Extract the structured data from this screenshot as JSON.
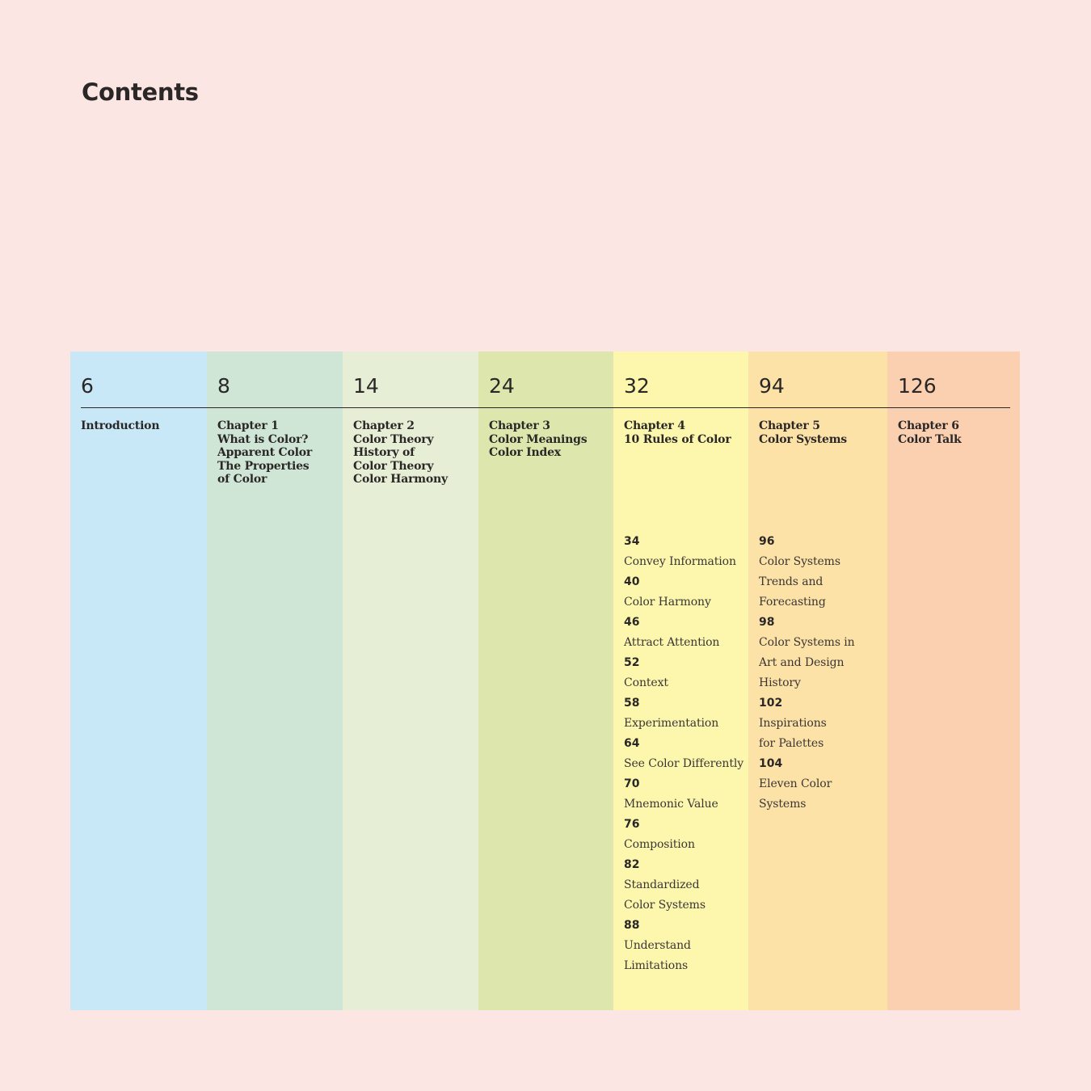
{
  "page_title": "Contents",
  "columns": [
    {
      "page": "6",
      "title": "Introduction",
      "color": "#c9e8f7",
      "subsections": []
    },
    {
      "page": "8",
      "title": "Chapter 1\nWhat is Color?\nApparent Color\nThe Properties\nof Color",
      "color": "#cfe6d6",
      "subsections": []
    },
    {
      "page": "14",
      "title": "Chapter 2\nColor Theory\nHistory of\nColor Theory\nColor Harmony",
      "color": "#e6efd5",
      "subsections": []
    },
    {
      "page": "24",
      "title": "Chapter 3\nColor Meanings\nColor Index",
      "color": "#dde7ad",
      "subsections": []
    },
    {
      "page": "32",
      "title": "Chapter 4\n10 Rules of Color",
      "color": "#fdf6ad",
      "subsections": [
        {
          "page": "34",
          "title": "Convey Information"
        },
        {
          "page": "40",
          "title": "Color Harmony"
        },
        {
          "page": "46",
          "title": "Attract Attention"
        },
        {
          "page": "52",
          "title": "Context"
        },
        {
          "page": "58",
          "title": "Experimentation"
        },
        {
          "page": "64",
          "title": "See Color Differently"
        },
        {
          "page": "70",
          "title": "Mnemonic Value"
        },
        {
          "page": "76",
          "title": "Composition"
        },
        {
          "page": "82",
          "title": "Standardized\nColor Systems"
        },
        {
          "page": "88",
          "title": "Understand\nLimitations"
        }
      ]
    },
    {
      "page": "94",
      "title": "Chapter 5\nColor Systems",
      "color": "#fde2a7",
      "subsections": [
        {
          "page": "96",
          "title": "Color Systems\nTrends and\nForecasting"
        },
        {
          "page": "98",
          "title": "Color Systems in\nArt and Design\nHistory"
        },
        {
          "page": "102",
          "title": "Inspirations\nfor Palettes"
        },
        {
          "page": "104",
          "title": "Eleven Color Systems"
        }
      ]
    },
    {
      "page": "126",
      "title": "Chapter 6\nColor Talk",
      "color": "#fbd0b1",
      "subsections": []
    }
  ]
}
